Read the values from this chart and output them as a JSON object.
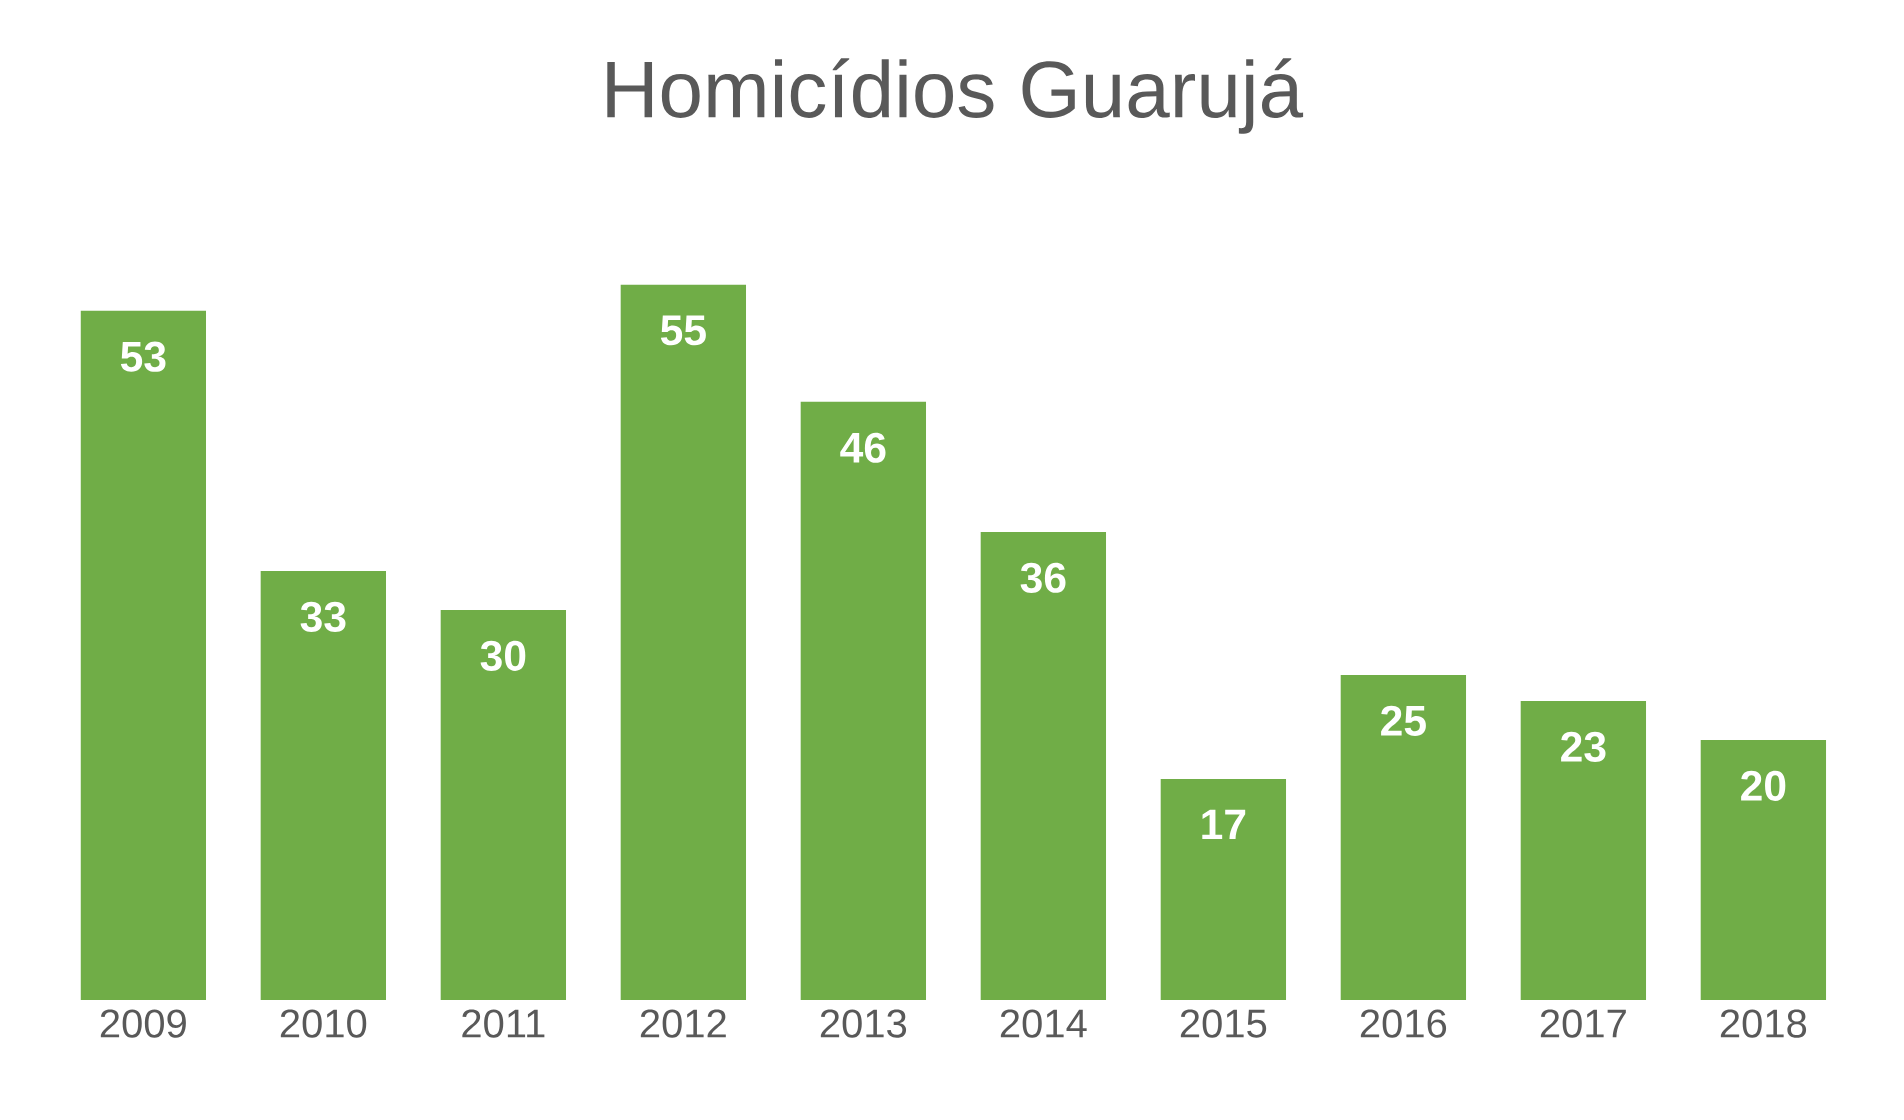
{
  "chart_data": {
    "type": "bar",
    "title": "Homicídios Guarujá",
    "categories": [
      "2009",
      "2010",
      "2011",
      "2012",
      "2013",
      "2014",
      "2015",
      "2016",
      "2017",
      "2018"
    ],
    "values": [
      53,
      33,
      30,
      55,
      46,
      36,
      17,
      25,
      23,
      20
    ],
    "color": "#70ad47",
    "data_labels": true,
    "tick_labels": "x"
  }
}
